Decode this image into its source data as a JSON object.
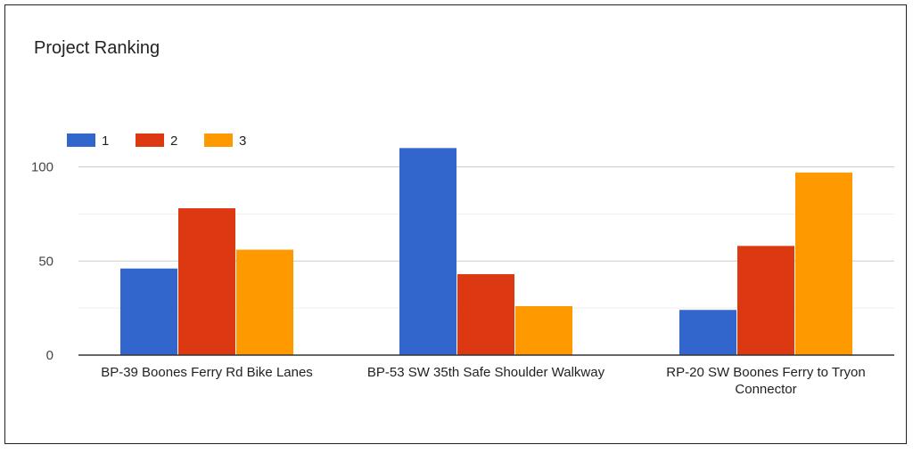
{
  "chart_data": {
    "type": "bar",
    "title": "Project Ranking",
    "categories": [
      [
        "BP-39 Boones Ferry Rd Bike Lanes"
      ],
      [
        "BP-53 SW 35th Safe Shoulder Walkway"
      ],
      [
        "RP-20 SW Boones Ferry to Tryon",
        "Connector"
      ]
    ],
    "series": [
      {
        "name": "1",
        "color": "#3366cc",
        "values": [
          46,
          110,
          24
        ]
      },
      {
        "name": "2",
        "color": "#dc3912",
        "values": [
          78,
          43,
          58
        ]
      },
      {
        "name": "3",
        "color": "#ff9900",
        "values": [
          56,
          26,
          97
        ]
      }
    ],
    "yticks": [
      "0",
      "50",
      "100"
    ],
    "ylim": [
      0,
      120
    ],
    "xlabel": "",
    "ylabel": "",
    "grid": true,
    "legend": "top-left"
  }
}
